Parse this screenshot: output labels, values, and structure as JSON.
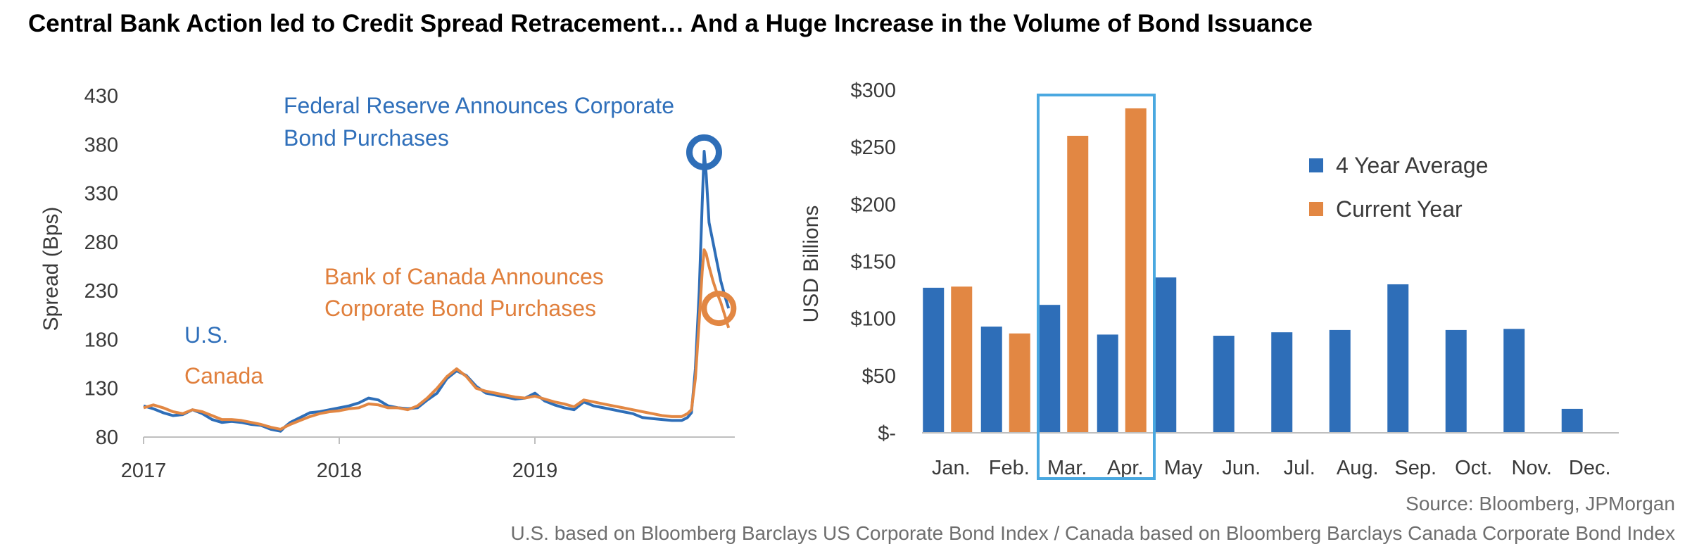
{
  "title": "Central Bank Action led to Credit Spread Retracement… And a Huge Increase in the Volume of Bond Issuance",
  "footer": {
    "source": "Source: Bloomberg, JPMorgan",
    "indices": "U.S. based on Bloomberg Barclays US Corporate Bond Index / Canada based on Bloomberg Barclays Canada Corporate Bond Index"
  },
  "colors": {
    "us": "#2e6eb8",
    "canada": "#e28743",
    "highlight": "#4aa8e0",
    "axis": "#bfbfbf"
  },
  "chart_data": [
    {
      "type": "line",
      "ylabel": "Spread (Bps)",
      "xlabel": "",
      "ylim": [
        80,
        430
      ],
      "yticks": [
        80,
        130,
        180,
        230,
        280,
        330,
        380,
        430
      ],
      "xlim": [
        2017.0,
        2020.0
      ],
      "xticks": [
        {
          "value": 2017,
          "label": "2017"
        },
        {
          "value": 2018,
          "label": "2018"
        },
        {
          "value": 2019,
          "label": "2019"
        }
      ],
      "grid": false,
      "series": [
        {
          "name": "U.S.",
          "color": "#2e6eb8",
          "points": [
            [
              2017.0,
              112
            ],
            [
              2017.05,
              109
            ],
            [
              2017.1,
              105
            ],
            [
              2017.15,
              102
            ],
            [
              2017.2,
              103
            ],
            [
              2017.25,
              108
            ],
            [
              2017.3,
              104
            ],
            [
              2017.35,
              98
            ],
            [
              2017.4,
              95
            ],
            [
              2017.45,
              96
            ],
            [
              2017.5,
              95
            ],
            [
              2017.55,
              93
            ],
            [
              2017.6,
              92
            ],
            [
              2017.65,
              88
            ],
            [
              2017.7,
              86
            ],
            [
              2017.72,
              90
            ],
            [
              2017.75,
              95
            ],
            [
              2017.8,
              100
            ],
            [
              2017.85,
              105
            ],
            [
              2017.9,
              106
            ],
            [
              2017.95,
              108
            ],
            [
              2018.0,
              110
            ],
            [
              2018.05,
              112
            ],
            [
              2018.1,
              115
            ],
            [
              2018.15,
              120
            ],
            [
              2018.2,
              118
            ],
            [
              2018.25,
              112
            ],
            [
              2018.3,
              110
            ],
            [
              2018.35,
              109
            ],
            [
              2018.4,
              110
            ],
            [
              2018.45,
              118
            ],
            [
              2018.5,
              125
            ],
            [
              2018.55,
              140
            ],
            [
              2018.6,
              148
            ],
            [
              2018.65,
              143
            ],
            [
              2018.7,
              132
            ],
            [
              2018.75,
              125
            ],
            [
              2018.8,
              123
            ],
            [
              2018.85,
              121
            ],
            [
              2018.9,
              119
            ],
            [
              2018.95,
              120
            ],
            [
              2019.0,
              125
            ],
            [
              2019.05,
              117
            ],
            [
              2019.1,
              113
            ],
            [
              2019.15,
              110
            ],
            [
              2019.2,
              108
            ],
            [
              2019.25,
              116
            ],
            [
              2019.3,
              112
            ],
            [
              2019.35,
              110
            ],
            [
              2019.4,
              108
            ],
            [
              2019.45,
              106
            ],
            [
              2019.5,
              104
            ],
            [
              2019.55,
              100
            ],
            [
              2019.6,
              99
            ],
            [
              2019.65,
              98
            ],
            [
              2019.7,
              97
            ],
            [
              2019.75,
              97
            ],
            [
              2019.78,
              100
            ],
            [
              2019.8,
              105
            ],
            [
              2019.82,
              150
            ],
            [
              2019.84,
              230
            ],
            [
              2019.855,
              320
            ],
            [
              2019.865,
              373
            ],
            [
              2019.875,
              350
            ],
            [
              2019.89,
              300
            ],
            [
              2019.91,
              280
            ],
            [
              2019.93,
              260
            ],
            [
              2019.95,
              240
            ],
            [
              2019.97,
              225
            ],
            [
              2019.99,
              212
            ]
          ]
        },
        {
          "name": "Canada",
          "color": "#e28743",
          "points": [
            [
              2017.0,
              110
            ],
            [
              2017.05,
              113
            ],
            [
              2017.1,
              110
            ],
            [
              2017.15,
              106
            ],
            [
              2017.2,
              104
            ],
            [
              2017.25,
              108
            ],
            [
              2017.3,
              106
            ],
            [
              2017.35,
              102
            ],
            [
              2017.4,
              98
            ],
            [
              2017.45,
              98
            ],
            [
              2017.5,
              97
            ],
            [
              2017.55,
              95
            ],
            [
              2017.6,
              93
            ],
            [
              2017.65,
              90
            ],
            [
              2017.7,
              88
            ],
            [
              2017.72,
              90
            ],
            [
              2017.75,
              93
            ],
            [
              2017.8,
              97
            ],
            [
              2017.85,
              101
            ],
            [
              2017.9,
              104
            ],
            [
              2017.95,
              106
            ],
            [
              2018.0,
              107
            ],
            [
              2018.05,
              109
            ],
            [
              2018.1,
              110
            ],
            [
              2018.15,
              114
            ],
            [
              2018.2,
              113
            ],
            [
              2018.25,
              110
            ],
            [
              2018.3,
              110
            ],
            [
              2018.35,
              108
            ],
            [
              2018.4,
              112
            ],
            [
              2018.45,
              120
            ],
            [
              2018.5,
              130
            ],
            [
              2018.55,
              142
            ],
            [
              2018.6,
              150
            ],
            [
              2018.65,
              142
            ],
            [
              2018.7,
              130
            ],
            [
              2018.75,
              127
            ],
            [
              2018.8,
              125
            ],
            [
              2018.85,
              123
            ],
            [
              2018.9,
              121
            ],
            [
              2018.95,
              120
            ],
            [
              2019.0,
              122
            ],
            [
              2019.05,
              119
            ],
            [
              2019.1,
              116
            ],
            [
              2019.15,
              114
            ],
            [
              2019.2,
              111
            ],
            [
              2019.25,
              118
            ],
            [
              2019.3,
              116
            ],
            [
              2019.35,
              114
            ],
            [
              2019.4,
              112
            ],
            [
              2019.45,
              110
            ],
            [
              2019.5,
              108
            ],
            [
              2019.55,
              106
            ],
            [
              2019.6,
              104
            ],
            [
              2019.65,
              102
            ],
            [
              2019.7,
              101
            ],
            [
              2019.75,
              101
            ],
            [
              2019.78,
              104
            ],
            [
              2019.8,
              108
            ],
            [
              2019.82,
              140
            ],
            [
              2019.84,
              200
            ],
            [
              2019.855,
              250
            ],
            [
              2019.865,
              272
            ],
            [
              2019.875,
              268
            ],
            [
              2019.89,
              255
            ],
            [
              2019.91,
              240
            ],
            [
              2019.93,
              228
            ],
            [
              2019.95,
              218
            ],
            [
              2019.97,
              205
            ],
            [
              2019.99,
              192
            ]
          ]
        }
      ],
      "series_labels": [
        {
          "text": "U.S.",
          "color": "#2e6eb8"
        },
        {
          "text": "Canada",
          "color": "#e28743"
        }
      ],
      "annotations": [
        {
          "lines": [
            "Federal Reserve Announces Corporate",
            "Bond Purchases"
          ],
          "color": "#2e6eb8",
          "marker": {
            "x": 2019.865,
            "y": 372
          }
        },
        {
          "lines": [
            "Bank of Canada Announces",
            "Corporate Bond Purchases"
          ],
          "color": "#e28743",
          "marker": {
            "x": 2019.94,
            "y": 212
          }
        }
      ]
    },
    {
      "type": "bar",
      "ylabel": "USD Billions",
      "xlabel": "",
      "ylim": [
        0,
        300
      ],
      "yticks": [
        {
          "value": 0,
          "label": "$-"
        },
        {
          "value": 50,
          "label": "$50"
        },
        {
          "value": 100,
          "label": "$100"
        },
        {
          "value": 150,
          "label": "$150"
        },
        {
          "value": 200,
          "label": "$200"
        },
        {
          "value": 250,
          "label": "$250"
        },
        {
          "value": 300,
          "label": "$300"
        }
      ],
      "grid": false,
      "categories": [
        "Jan.",
        "Feb.",
        "Mar.",
        "Apr.",
        "May",
        "Jun.",
        "Jul.",
        "Aug.",
        "Sep.",
        "Oct.",
        "Nov.",
        "Dec."
      ],
      "series": [
        {
          "name": "4 Year Average",
          "color": "#2e6eb8",
          "values": [
            127,
            93,
            112,
            86,
            136,
            85,
            88,
            90,
            130,
            90,
            91,
            21
          ]
        },
        {
          "name": "Current Year",
          "color": "#e28743",
          "values": [
            128,
            87,
            260,
            284,
            null,
            null,
            null,
            null,
            null,
            null,
            null,
            null
          ]
        }
      ],
      "legend_position": "right",
      "highlight_categories": [
        "Mar.",
        "Apr."
      ]
    }
  ]
}
